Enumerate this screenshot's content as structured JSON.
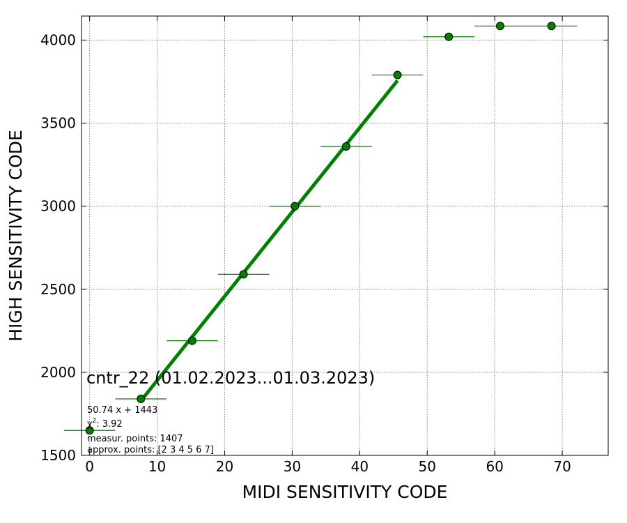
{
  "chart_data": {
    "type": "scatter",
    "xlabel": "MIDI SENSITIVITY CODE",
    "ylabel": "HIGH SENSITIVITY CODE",
    "xlim": [
      -1.2,
      76.8
    ],
    "ylim": [
      1500,
      4145
    ],
    "x_ticks": [
      0,
      10,
      20,
      30,
      40,
      50,
      60,
      70
    ],
    "y_ticks": [
      1500,
      2000,
      2500,
      3000,
      3500,
      4000
    ],
    "grid": true,
    "colors": {
      "points": "#008000",
      "fit_line": "#008000",
      "grid": "#808080"
    },
    "points": [
      {
        "x": 0.0,
        "y": 1650,
        "xerr": 3.8
      },
      {
        "x": 7.6,
        "y": 1840,
        "xerr": 3.8
      },
      {
        "x": 15.2,
        "y": 2190,
        "xerr": 3.8
      },
      {
        "x": 22.8,
        "y": 2590,
        "xerr": 3.8
      },
      {
        "x": 30.4,
        "y": 3000,
        "xerr": 3.8
      },
      {
        "x": 38.0,
        "y": 3360,
        "xerr": 3.8
      },
      {
        "x": 45.6,
        "y": 3790,
        "xerr": 3.8
      },
      {
        "x": 53.2,
        "y": 4020,
        "xerr": 3.8
      },
      {
        "x": 60.8,
        "y": 4085,
        "xerr": 3.8
      },
      {
        "x": 68.4,
        "y": 4085,
        "xerr": 3.8
      }
    ],
    "fit": {
      "slope": 50.74,
      "intercept": 1443,
      "x_range": [
        7.6,
        45.6
      ]
    },
    "annotations": {
      "title": "cntr_22 (01.02.2023...01.03.2023)",
      "equation": "50.74 x + 1443",
      "chi_prefix": "χ",
      "chi_power": "2",
      "chi_value": ": 3.92",
      "measur_points": "measur. points: 1407",
      "approx_points": "approx. points: [2 3 4 5 6 7]"
    }
  }
}
